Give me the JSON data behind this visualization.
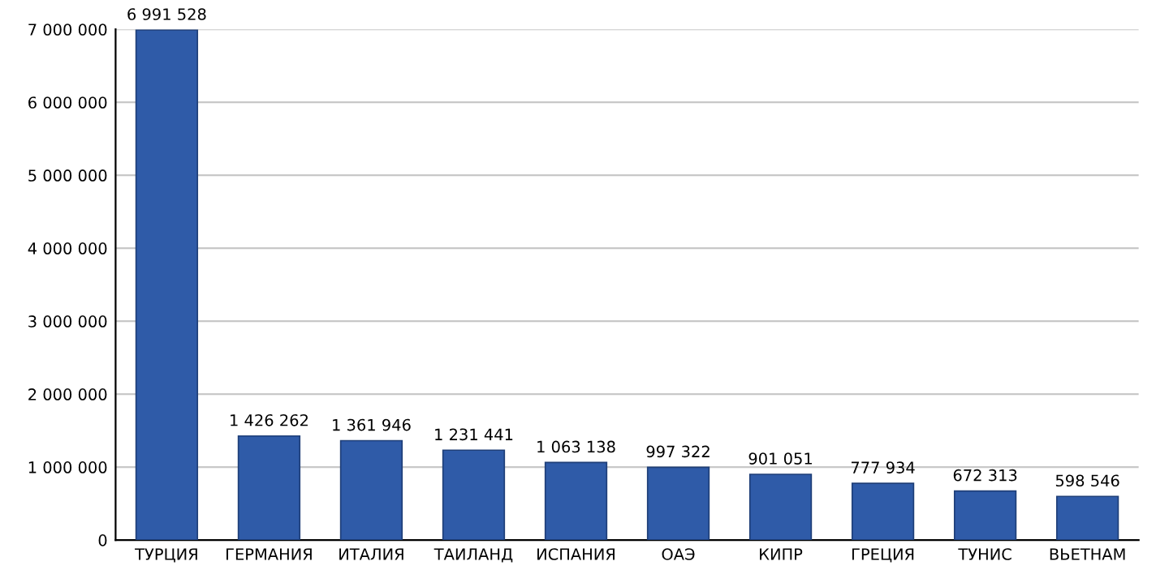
{
  "chart_data": {
    "type": "bar",
    "categories": [
      "ТУРЦИЯ",
      "ГЕРМАНИЯ",
      "ИТАЛИЯ",
      "ТАИЛАНД",
      "ИСПАНИЯ",
      "ОАЭ",
      "КИПР",
      "ГРЕЦИЯ",
      "ТУНИС",
      "ВЬЕТНАМ"
    ],
    "values": [
      6991528,
      1426262,
      1361946,
      1231441,
      1063138,
      997322,
      901051,
      777934,
      672313,
      598546
    ],
    "value_labels": [
      "6 991 528",
      "1 426 262",
      "1 361 946",
      "1 231 441",
      "1 063 138",
      "997 322",
      "901 051",
      "777 934",
      "672 313",
      "598 546"
    ],
    "color": "#2f5ba8",
    "ylim": [
      0,
      7000000
    ],
    "yticks": [
      {
        "value": 0,
        "label": "0"
      },
      {
        "value": 1000000,
        "label": "1 000 000"
      },
      {
        "value": 2000000,
        "label": "2 000 000"
      },
      {
        "value": 3000000,
        "label": "3 000 000"
      },
      {
        "value": 4000000,
        "label": "4 000 000"
      },
      {
        "value": 5000000,
        "label": "5 000 000"
      },
      {
        "value": 6000000,
        "label": "6 000 000"
      },
      {
        "value": 7000000,
        "label": "7 000 000"
      }
    ],
    "grid": "y"
  }
}
